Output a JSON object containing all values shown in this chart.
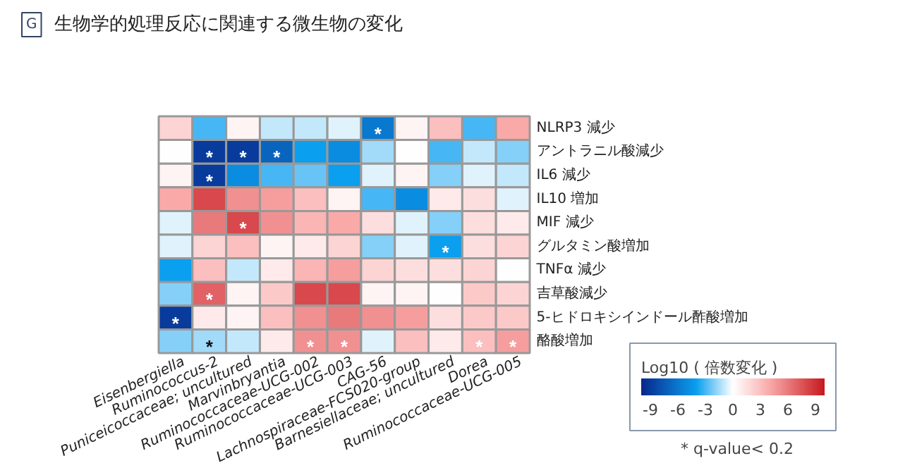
{
  "chart_data": {
    "type": "heatmap",
    "title": "生物学的処理反応に関連する微生物の変化",
    "categories": [
      "Eisenbergiella",
      "Ruminococcus-2",
      "Puniceicoccaceae; uncultured",
      "Marvinbryantia",
      "Ruminococcaceae-UCG-002",
      "Ruminococcaceae-UCG-003",
      "CAG-56",
      "Lachnospiraceae-FCS020-group",
      "Barnesiellaceae; uncultured",
      "Dorea",
      "Ruminococcaceae-UCG-005"
    ],
    "y_categories": [
      "NLRP3 減少",
      "アントラニル酸減少",
      "IL6 減少",
      "IL10 増加",
      "MIF 減少",
      "グルタミン酸増加",
      "TNFα 減少",
      "吉草酸減少",
      "5-ヒドロキシインドール酢酸増加",
      "酪酸増加"
    ],
    "cells": [
      [
        2,
        -3,
        0.5,
        -1,
        -1,
        -0.5,
        -6,
        0.5,
        3,
        -3,
        4
      ],
      [
        0,
        -9,
        -9,
        -7,
        -4,
        -5,
        -1.5,
        0,
        -3,
        -1,
        -2
      ],
      [
        0.5,
        -9,
        -5,
        -3,
        -2.5,
        -4,
        -0.5,
        0.5,
        -2,
        -0.5,
        -1
      ],
      [
        4,
        8,
        5,
        4.5,
        3,
        0.5,
        -3,
        -5,
        1,
        1.5,
        -0.5
      ],
      [
        -0.5,
        6,
        8,
        5,
        3.5,
        4,
        1.5,
        -0.5,
        -2,
        1.5,
        1
      ],
      [
        -0.5,
        2,
        3,
        0.5,
        1,
        2,
        -2,
        -0.5,
        -4,
        1.5,
        2
      ],
      [
        -4,
        3,
        -1,
        1,
        3.5,
        4.5,
        2,
        1.5,
        1.5,
        2,
        0
      ],
      [
        -2,
        7,
        0.5,
        2.5,
        8,
        8,
        0.5,
        0.5,
        0,
        2.5,
        2
      ],
      [
        -9,
        1,
        0.5,
        3,
        5,
        6,
        5,
        4.5,
        1.5,
        2.5,
        2.5
      ],
      [
        -2,
        -1.5,
        -1,
        1,
        5,
        5,
        -0.5,
        3,
        1,
        3,
        4.5
      ]
    ],
    "cell_labels": [
      [
        null,
        null,
        null,
        null,
        null,
        null,
        "*",
        null,
        null,
        null,
        null
      ],
      [
        null,
        "*",
        "*",
        "*",
        null,
        null,
        null,
        null,
        null,
        null,
        null
      ],
      [
        null,
        "*",
        null,
        null,
        null,
        null,
        null,
        null,
        null,
        null,
        null
      ],
      [
        null,
        null,
        null,
        null,
        null,
        null,
        null,
        null,
        null,
        null,
        null
      ],
      [
        null,
        null,
        "*",
        null,
        null,
        null,
        null,
        null,
        null,
        null,
        null
      ],
      [
        null,
        null,
        null,
        null,
        null,
        null,
        null,
        null,
        "*",
        null,
        null
      ],
      [
        null,
        null,
        null,
        null,
        null,
        null,
        null,
        null,
        null,
        null,
        null
      ],
      [
        null,
        "*",
        null,
        null,
        null,
        null,
        null,
        null,
        null,
        null,
        null
      ],
      [
        "*",
        null,
        null,
        null,
        null,
        null,
        null,
        null,
        null,
        null,
        null
      ],
      [
        null,
        "*",
        null,
        null,
        "*",
        "*",
        null,
        null,
        null,
        "*",
        "*"
      ]
    ],
    "clim": [
      -10,
      10
    ],
    "cticks": [
      -9,
      -6,
      -3,
      0,
      3,
      6,
      9
    ],
    "clabel": "Log10 ( 倍数変化 )",
    "annotations": [
      "G",
      "* q-value< 0.2"
    ]
  }
}
